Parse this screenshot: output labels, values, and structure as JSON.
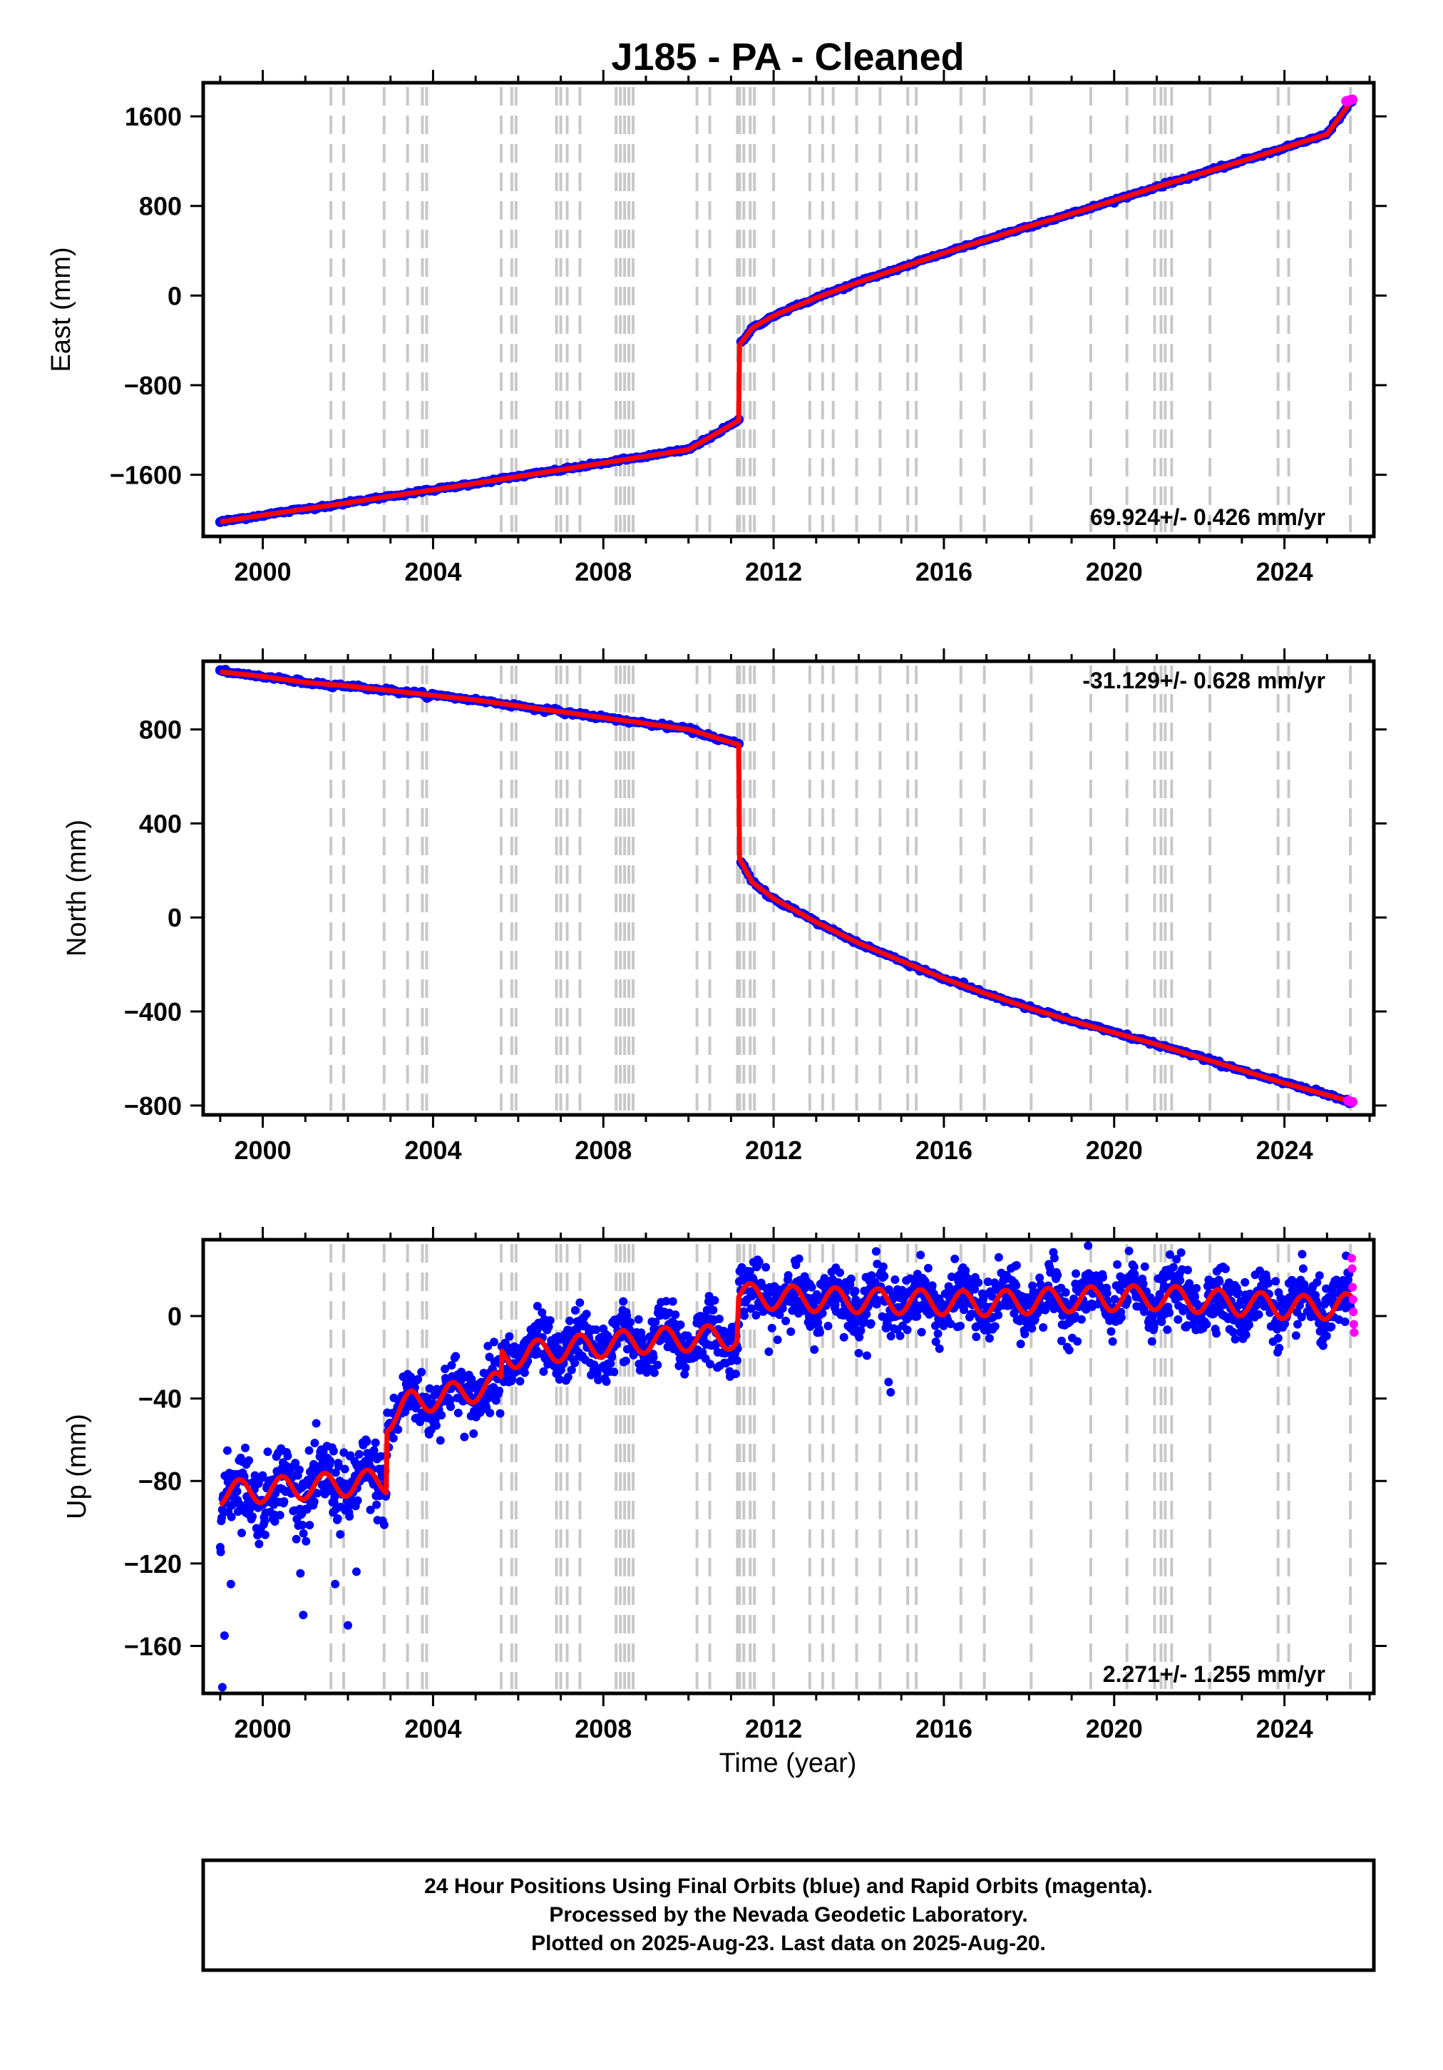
{
  "page": {
    "title": "J185  - PA - Cleaned",
    "footer_lines": [
      "24 Hour Positions Using Final Orbits (blue) and Rapid Orbits (magenta).",
      "Processed by the Nevada Geodetic Laboratory.",
      "Plotted on 2025-Aug-23. Last data on 2025-Aug-20."
    ]
  },
  "colors": {
    "final_orbits": "#0000ff",
    "rapid_orbits": "#ff00ff",
    "model_fit": "#ff0000",
    "event_lines": "#c8c8c8",
    "frame": "#000000"
  },
  "chart_data": [
    {
      "type": "scatter",
      "name": "east",
      "ylabel": "East (mm)",
      "xlim": [
        1998.6,
        2026.1
      ],
      "ylim": [
        -2150,
        1900
      ],
      "xticks": [
        2000,
        2004,
        2008,
        2012,
        2016,
        2020,
        2024
      ],
      "xtick_labels": [
        "2000",
        "2004",
        "2008",
        "2012",
        "2016",
        "2020",
        "2024"
      ],
      "yticks": [
        1600,
        800,
        0,
        -800,
        -1600
      ],
      "ytick_labels": [
        "1600",
        "800",
        "0",
        "−800",
        "−1600"
      ],
      "rate_text": "69.924+/- 0.426 mm/yr",
      "rate_position": "bottom-right",
      "grid": false,
      "step_events": [
        2011.19
      ],
      "series": [
        {
          "name": "final orbits",
          "color": "#0000ff",
          "x": [
            1999.0,
            2000.0,
            2001.0,
            2002.0,
            2003.0,
            2004.0,
            2005.0,
            2006.0,
            2007.0,
            2008.0,
            2009.0,
            2010.0,
            2011.18,
            2011.2,
            2011.5,
            2012.0,
            2013.0,
            2014.0,
            2015.0,
            2016.0,
            2017.0,
            2018.0,
            2019.0,
            2020.0,
            2021.0,
            2022.0,
            2023.0,
            2024.0,
            2025.0,
            2025.6
          ],
          "y": [
            -2020,
            -1960,
            -1905,
            -1850,
            -1790,
            -1735,
            -1675,
            -1615,
            -1555,
            -1495,
            -1435,
            -1375,
            -1115,
            -440,
            -290,
            -180,
            -20,
            120,
            250,
            380,
            500,
            620,
            730,
            850,
            970,
            1085,
            1200,
            1320,
            1440,
            1750
          ]
        },
        {
          "name": "rapid orbits",
          "color": "#ff00ff",
          "x": [
            2025.45,
            2025.5,
            2025.55,
            2025.6
          ],
          "y": [
            1735,
            1740,
            1745,
            1750
          ]
        },
        {
          "name": "model",
          "color": "#ff0000",
          "x": [
            1999.0,
            2000.0,
            2001.0,
            2002.0,
            2003.0,
            2004.0,
            2005.0,
            2006.0,
            2007.0,
            2008.0,
            2009.0,
            2010.0,
            2011.18,
            2011.2,
            2011.5,
            2012.0,
            2013.0,
            2014.0,
            2015.0,
            2016.0,
            2017.0,
            2018.0,
            2019.0,
            2020.0,
            2021.0,
            2022.0,
            2023.0,
            2024.0,
            2025.0,
            2025.6
          ],
          "y": [
            -2020,
            -1960,
            -1905,
            -1850,
            -1790,
            -1735,
            -1675,
            -1615,
            -1555,
            -1495,
            -1435,
            -1375,
            -1115,
            -440,
            -290,
            -180,
            -20,
            120,
            250,
            380,
            500,
            620,
            730,
            850,
            970,
            1085,
            1200,
            1320,
            1440,
            1750
          ]
        }
      ]
    },
    {
      "type": "scatter",
      "name": "north",
      "ylabel": "North (mm)",
      "xlim": [
        1998.6,
        2026.1
      ],
      "ylim": [
        -840,
        1090
      ],
      "xticks": [
        2000,
        2004,
        2008,
        2012,
        2016,
        2020,
        2024
      ],
      "xtick_labels": [
        "2000",
        "2004",
        "2008",
        "2012",
        "2016",
        "2020",
        "2024"
      ],
      "yticks": [
        800,
        400,
        0,
        -400,
        -800
      ],
      "ytick_labels": [
        "800",
        "400",
        "0",
        "−400",
        "−800"
      ],
      "rate_text": "-31.129+/- 0.628 mm/yr",
      "rate_position": "top-right",
      "grid": false,
      "step_events": [
        2011.19
      ],
      "series": [
        {
          "name": "final orbits",
          "color": "#0000ff",
          "x": [
            1999.0,
            2000.0,
            2001.0,
            2002.0,
            2003.0,
            2004.0,
            2005.0,
            2006.0,
            2007.0,
            2008.0,
            2009.0,
            2010.0,
            2011.18,
            2011.2,
            2011.5,
            2012.0,
            2013.0,
            2014.0,
            2015.0,
            2016.0,
            2017.0,
            2018.0,
            2019.0,
            2020.0,
            2021.0,
            2022.0,
            2023.0,
            2024.0,
            2025.0,
            2025.6
          ],
          "y": [
            1045,
            1025,
            1000,
            985,
            965,
            945,
            925,
            900,
            875,
            850,
            825,
            800,
            735,
            250,
            150,
            80,
            -20,
            -110,
            -185,
            -260,
            -325,
            -385,
            -440,
            -490,
            -540,
            -595,
            -650,
            -705,
            -755,
            -785
          ]
        },
        {
          "name": "rapid orbits",
          "color": "#ff00ff",
          "x": [
            2025.5,
            2025.55,
            2025.6
          ],
          "y": [
            -780,
            -783,
            -785
          ]
        },
        {
          "name": "model",
          "color": "#ff0000",
          "x": [
            1999.0,
            2000.0,
            2001.0,
            2002.0,
            2003.0,
            2004.0,
            2005.0,
            2006.0,
            2007.0,
            2008.0,
            2009.0,
            2010.0,
            2011.18,
            2011.2,
            2011.5,
            2012.0,
            2013.0,
            2014.0,
            2015.0,
            2016.0,
            2017.0,
            2018.0,
            2019.0,
            2020.0,
            2021.0,
            2022.0,
            2023.0,
            2024.0,
            2025.0,
            2025.6
          ],
          "y": [
            1045,
            1025,
            1000,
            985,
            965,
            945,
            925,
            900,
            875,
            850,
            825,
            800,
            735,
            250,
            150,
            80,
            -20,
            -110,
            -185,
            -260,
            -325,
            -385,
            -440,
            -490,
            -540,
            -595,
            -650,
            -705,
            -755,
            -785
          ]
        }
      ]
    },
    {
      "type": "scatter",
      "name": "up",
      "ylabel": "Up (mm)",
      "xlabel": "Time (year)",
      "xlim": [
        1998.6,
        2026.1
      ],
      "ylim": [
        -183,
        37
      ],
      "xticks": [
        2000,
        2004,
        2008,
        2012,
        2016,
        2020,
        2024
      ],
      "xtick_labels": [
        "2000",
        "2004",
        "2008",
        "2012",
        "2016",
        "2020",
        "2024"
      ],
      "yticks": [
        0,
        -40,
        -80,
        -120,
        -160
      ],
      "ytick_labels": [
        "0",
        "−40",
        "−80",
        "−120",
        "−160"
      ],
      "rate_text": "2.271+/- 1.255 mm/yr",
      "rate_position": "bottom-right",
      "grid": false,
      "seasonal_amplitude_mm": 6,
      "series": [
        {
          "name": "model",
          "color": "#ff0000",
          "x": [
            1999.0,
            2002.9,
            2002.92,
            2003.5,
            2004.5,
            2005.6,
            2005.62,
            2007.0,
            2009.0,
            2011.15,
            2011.17,
            2013.0,
            2015.0,
            2017.0,
            2019.0,
            2021.0,
            2023.0,
            2024.5,
            2025.6
          ],
          "y": [
            -86,
            -80,
            -50,
            -42,
            -38,
            -33,
            -20,
            -16,
            -12,
            -10,
            10,
            8,
            7,
            6,
            8,
            9,
            6,
            4,
            5
          ]
        },
        {
          "name": "final orbits",
          "color": "#0000ff",
          "note_values": "daily scatter, sd approx 8 mm around model",
          "outliers_x": [
            1999.05,
            1999.1,
            1999.25,
            2000.95,
            2001.7,
            2002.0,
            2002.2,
            2014.7,
            2014.75
          ],
          "outliers_y": [
            -180,
            -155,
            -130,
            -145,
            -130,
            -150,
            -124,
            -32,
            -37
          ]
        },
        {
          "name": "rapid orbits",
          "color": "#ff00ff",
          "x": [
            2025.58,
            2025.59,
            2025.6,
            2025.61,
            2025.62,
            2025.63,
            2025.64
          ],
          "y": [
            28,
            23,
            14,
            8,
            2,
            -4,
            -8
          ]
        }
      ]
    }
  ],
  "event_lines_years": [
    2001.6,
    2001.9,
    2002.85,
    2003.4,
    2003.75,
    2003.85,
    2005.6,
    2005.85,
    2005.95,
    2006.9,
    2007.0,
    2007.15,
    2007.45,
    2008.3,
    2008.4,
    2008.5,
    2008.6,
    2008.7,
    2010.2,
    2010.5,
    2011.15,
    2011.2,
    2011.3,
    2011.45,
    2011.55,
    2012.0,
    2012.85,
    2013.15,
    2013.4,
    2013.95,
    2014.5,
    2015.15,
    2015.35,
    2016.4,
    2016.95,
    2018.05,
    2019.45,
    2020.3,
    2020.95,
    2021.1,
    2021.2,
    2021.35,
    2022.25,
    2023.85,
    2024.1,
    2025.55
  ]
}
